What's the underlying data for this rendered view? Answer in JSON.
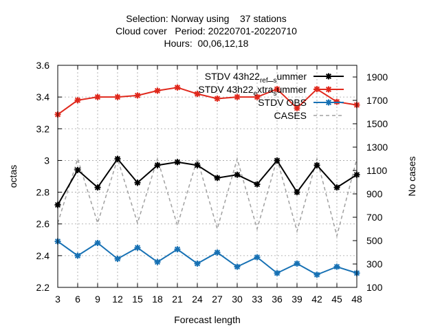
{
  "chart_data": {
    "type": "line",
    "title_lines": [
      "Selection: Norway using    37 stations",
      "Cloud cover   Period: 20220701-20220710",
      "Hours:  00,06,12,18"
    ],
    "xlabel": "Forecast length",
    "ylabel": "octas",
    "y2label": "No cases",
    "x": [
      3,
      6,
      9,
      12,
      15,
      18,
      21,
      24,
      27,
      30,
      33,
      36,
      39,
      42,
      45,
      48
    ],
    "xlim": [
      3,
      48
    ],
    "ylim": [
      2.2,
      3.6
    ],
    "y2lim": [
      100,
      2000
    ],
    "yticks": [
      "2.2",
      "2.4",
      "2.6",
      "2.8",
      "3",
      "3.2",
      "3.4",
      "3.6"
    ],
    "y2ticks": [
      "100",
      "300",
      "500",
      "700",
      "900",
      "1100",
      "1300",
      "1500",
      "1700",
      "1900"
    ],
    "grid": true,
    "legend_position": "top-right",
    "series": [
      {
        "name": "STDV 43h22_ref_summer",
        "legend_parts": [
          "STDV 43h22",
          "ref",
          "s",
          "ummer"
        ],
        "axis": "y",
        "color": "#000000",
        "marker": "star",
        "dash": false,
        "values": [
          2.72,
          2.94,
          2.83,
          3.01,
          2.86,
          2.97,
          2.99,
          2.97,
          2.89,
          2.91,
          2.85,
          3.0,
          2.8,
          2.97,
          2.83,
          2.91
        ]
      },
      {
        "name": "STDV 43h22_extra_summer",
        "legend_parts": [
          "STDV 43h22",
          "e",
          "xtra",
          "s",
          "ummer"
        ],
        "axis": "y",
        "color": "#e0281c",
        "marker": "star",
        "dash": false,
        "values": [
          3.29,
          3.38,
          3.4,
          3.4,
          3.41,
          3.44,
          3.46,
          3.42,
          3.39,
          3.4,
          3.4,
          3.45,
          3.33,
          3.45,
          3.37,
          3.35
        ]
      },
      {
        "name": "STDV OBS",
        "axis": "y",
        "color": "#1771b4",
        "marker": "star",
        "dash": false,
        "values": [
          2.49,
          2.4,
          2.48,
          2.38,
          2.45,
          2.36,
          2.44,
          2.35,
          2.42,
          2.33,
          2.39,
          2.29,
          2.35,
          2.28,
          2.33,
          2.29
        ]
      },
      {
        "name": "CASES",
        "axis": "y2",
        "color": "#a0a0a0",
        "marker": "none",
        "dash": true,
        "values": [
          650,
          1200,
          650,
          1200,
          650,
          1200,
          630,
          1200,
          600,
          1200,
          600,
          1200,
          580,
          1200,
          540,
          1200
        ]
      }
    ]
  }
}
